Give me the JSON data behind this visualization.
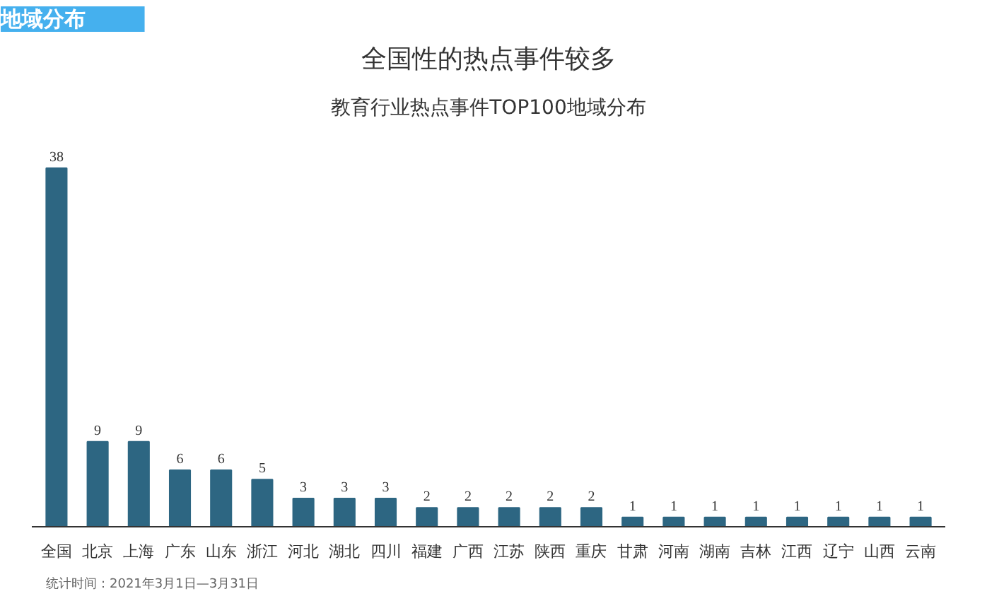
{
  "chart_data": {
    "type": "bar",
    "title": "全国性的热点事件较多",
    "subtitle": "教育行业热点事件TOP100地域分布",
    "annotations": [
      "地域分布",
      "统计时间：2021年3月1日—3月31日"
    ],
    "categories": [
      "全国",
      "北京",
      "上海",
      "广东",
      "山东",
      "浙江",
      "河北",
      "湖北",
      "四川",
      "福建",
      "广西",
      "江苏",
      "陕西",
      "重庆",
      "甘肃",
      "河南",
      "湖南",
      "吉林",
      "江西",
      "辽宁",
      "山西",
      "云南"
    ],
    "values": [
      38,
      9,
      9,
      6,
      6,
      5,
      3,
      3,
      3,
      2,
      2,
      2,
      2,
      2,
      1,
      1,
      1,
      1,
      1,
      1,
      1,
      1
    ],
    "color": "#2d6682",
    "data_labels": true,
    "grid": false
  }
}
